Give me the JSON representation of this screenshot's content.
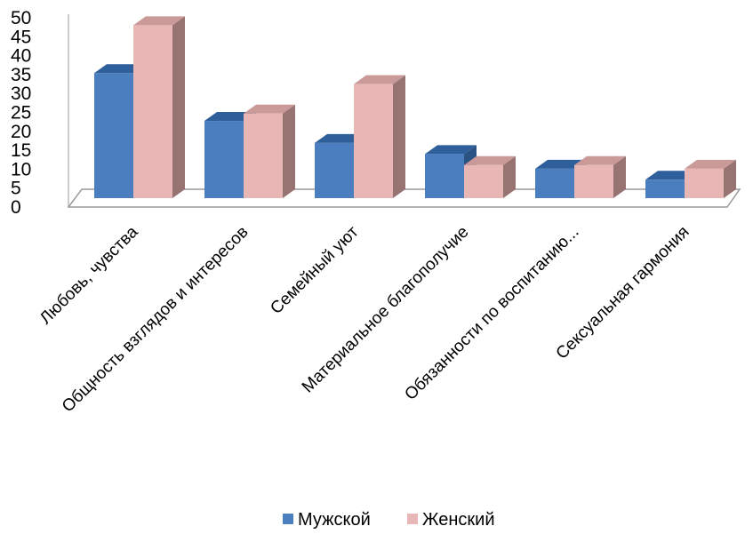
{
  "chart_data": {
    "type": "bar",
    "style": "3d-clustered-column",
    "categories": [
      "Любовь, чувства",
      "Общность взглядов и интересов",
      "Семейный уют",
      "Материальное благополучие",
      "Обязанности по воспитанию...",
      "Сексуальная гармония"
    ],
    "series": [
      {
        "name": "Мужской",
        "values": [
          34,
          21,
          15,
          12,
          8,
          5
        ],
        "color": "#4a7ebf",
        "top_color": "#2f5f9a",
        "side_color": "#2a5283"
      },
      {
        "name": "Женский",
        "values": [
          47,
          23,
          31,
          9,
          9,
          8
        ],
        "color": "#e8b6b5",
        "top_color": "#c99a98",
        "side_color": "#977472"
      }
    ],
    "ylim": [
      0,
      50
    ],
    "yticks": [
      "0",
      "5",
      "10",
      "15",
      "20",
      "25",
      "30",
      "35",
      "40",
      "45",
      "50"
    ],
    "grid": false,
    "legend": "bottom"
  }
}
